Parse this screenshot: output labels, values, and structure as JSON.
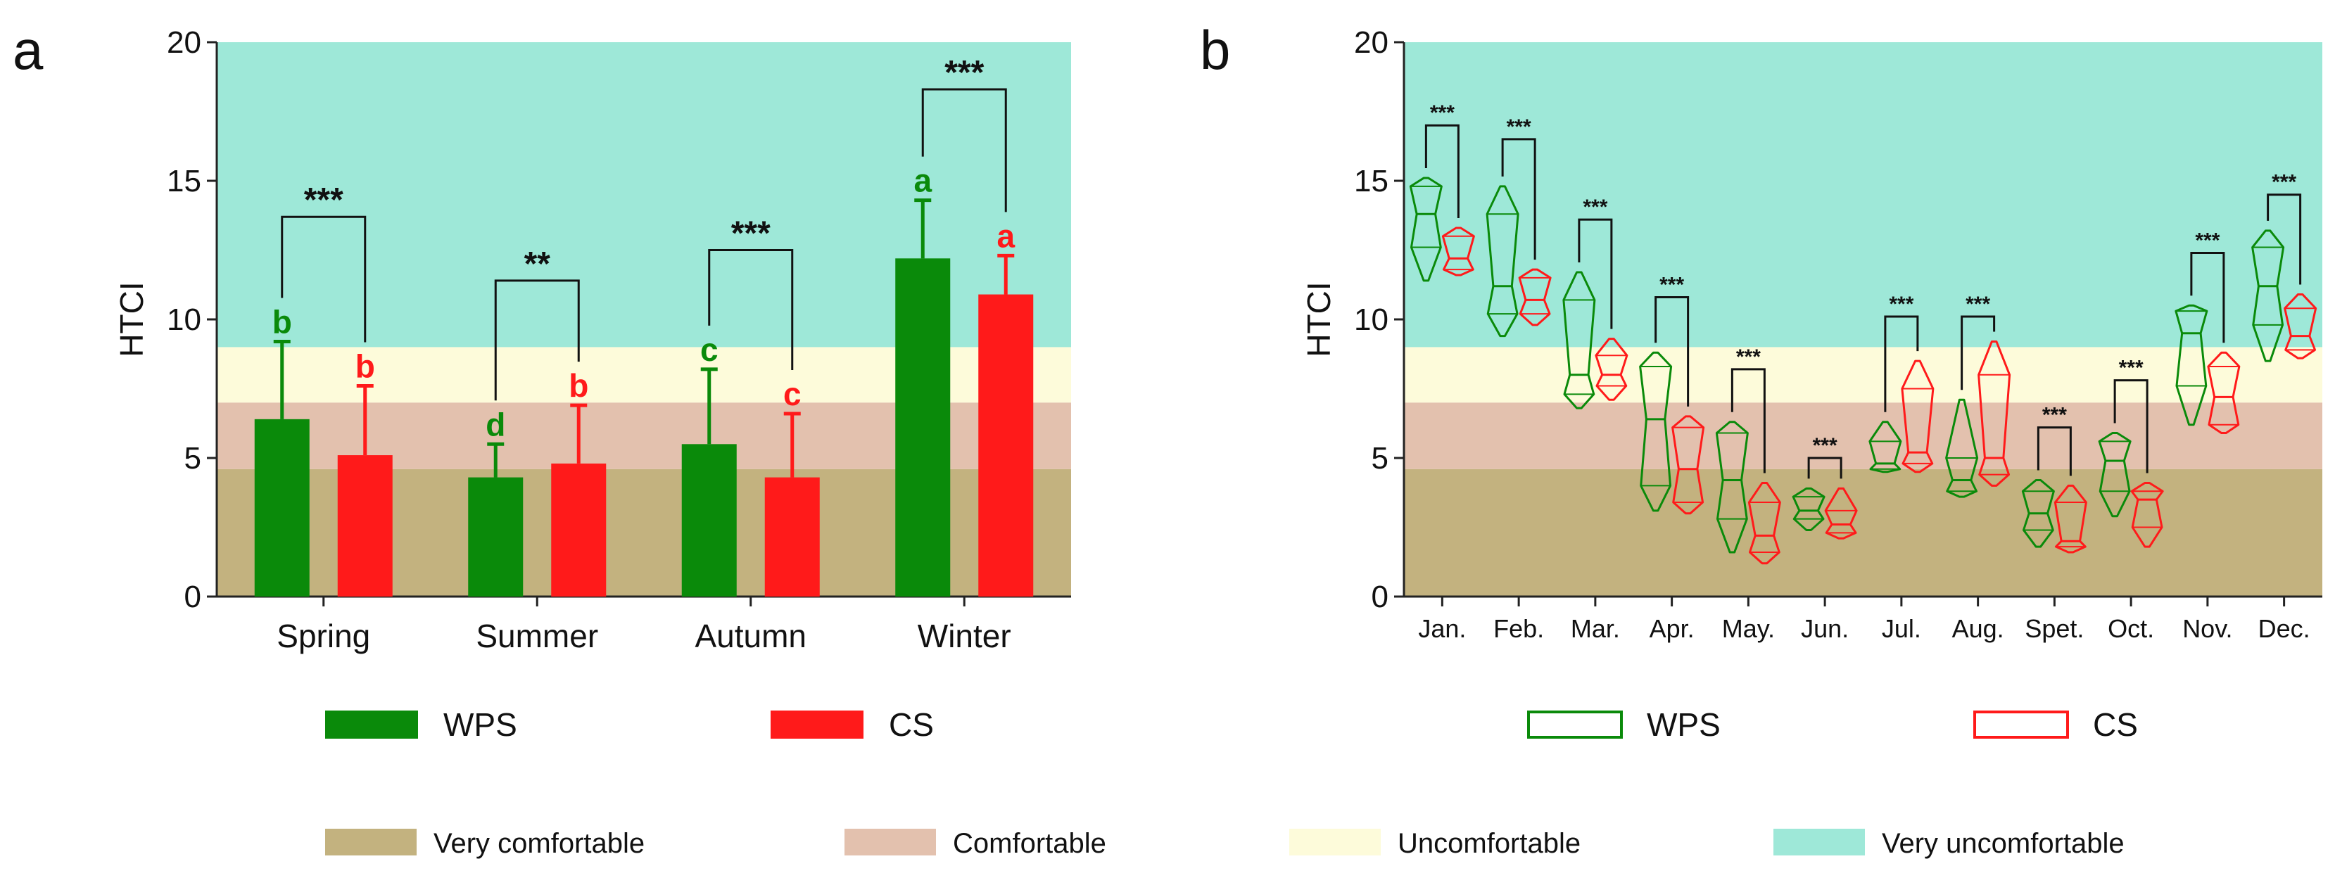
{
  "colors": {
    "wps": "#0a8a0a",
    "cs": "#ff1a1a",
    "very_comfortable": "#c3b27f",
    "comfortable": "#e3c1ae",
    "uncomfortable": "#fdfbda",
    "very_uncomfortable": "#9ee8d8"
  },
  "chart_data": [
    {
      "panel_label": "a",
      "type": "bar",
      "ylabel": "HTCI",
      "xlabel": "",
      "ylim": [
        0,
        20
      ],
      "yticks": [
        "0",
        "5",
        "10",
        "15",
        "20"
      ],
      "categories": [
        "Spring",
        "Summer",
        "Autumn",
        "Winter"
      ],
      "series": [
        {
          "name": "WPS",
          "values": [
            6.4,
            4.3,
            5.5,
            12.2
          ],
          "error": [
            2.8,
            1.2,
            2.7,
            2.1
          ],
          "letters": [
            "b",
            "d",
            "c",
            "a"
          ]
        },
        {
          "name": "CS",
          "values": [
            5.1,
            4.8,
            4.3,
            10.9
          ],
          "error": [
            2.5,
            2.1,
            2.3,
            1.4
          ],
          "letters": [
            "b",
            "b",
            "c",
            "a"
          ]
        }
      ],
      "significance": [
        {
          "label": "***",
          "y": 13.7
        },
        {
          "label": "**",
          "y": 11.4
        },
        {
          "label": "***",
          "y": 12.5
        },
        {
          "label": "***",
          "y": 18.3
        }
      ],
      "comfort_bands": [
        {
          "name": "Very comfortable",
          "from": 0,
          "to": 4.6
        },
        {
          "name": "Comfortable",
          "from": 4.6,
          "to": 7.0
        },
        {
          "name": "Uncomfortable",
          "from": 7.0,
          "to": 9.0
        },
        {
          "name": "Very uncomfortable",
          "from": 9.0,
          "to": 20
        }
      ],
      "legend": [
        "WPS",
        "CS"
      ]
    },
    {
      "panel_label": "b",
      "type": "violin",
      "ylabel": "HTCI",
      "xlabel": "",
      "ylim": [
        0,
        20
      ],
      "yticks": [
        "0",
        "5",
        "10",
        "15",
        "20"
      ],
      "categories": [
        "Jan.",
        "Feb.",
        "Mar.",
        "Apr.",
        "May.",
        "Jun.",
        "Jul.",
        "Aug.",
        "Spet.",
        "Oct.",
        "Nov.",
        "Dec."
      ],
      "series": [
        {
          "name": "WPS",
          "min": [
            11.4,
            9.4,
            6.8,
            3.1,
            1.6,
            2.4,
            4.5,
            3.6,
            1.8,
            2.9,
            6.2,
            8.5
          ],
          "max": [
            15.1,
            14.8,
            11.7,
            8.8,
            6.3,
            3.9,
            6.3,
            7.1,
            4.2,
            5.9,
            10.5,
            13.2
          ],
          "median": [
            13.8,
            11.2,
            8.0,
            6.4,
            4.2,
            3.1,
            4.8,
            4.2,
            3.0,
            4.9,
            9.5,
            11.2
          ],
          "q1": [
            12.6,
            10.2,
            7.3,
            4.0,
            2.8,
            2.8,
            4.6,
            3.8,
            2.4,
            3.8,
            7.6,
            9.8
          ],
          "q3": [
            14.8,
            13.8,
            10.7,
            8.3,
            5.9,
            3.6,
            5.6,
            5.0,
            3.8,
            5.6,
            10.3,
            12.6
          ]
        },
        {
          "name": "CS",
          "min": [
            11.6,
            9.8,
            7.1,
            3.0,
            1.2,
            2.1,
            4.5,
            4.0,
            1.6,
            1.8,
            5.9,
            8.6
          ],
          "max": [
            13.3,
            11.8,
            9.3,
            6.5,
            4.1,
            3.9,
            8.5,
            9.2,
            4.0,
            4.1,
            8.8,
            10.9
          ],
          "median": [
            12.2,
            10.7,
            8.0,
            4.6,
            2.2,
            2.6,
            5.2,
            5.0,
            2.0,
            3.5,
            7.2,
            9.4
          ],
          "q1": [
            11.8,
            10.2,
            7.6,
            3.4,
            1.6,
            2.3,
            4.8,
            4.4,
            1.8,
            2.5,
            6.2,
            8.9
          ],
          "q3": [
            13.0,
            11.5,
            8.7,
            6.1,
            3.4,
            3.1,
            7.5,
            8.0,
            3.4,
            3.8,
            8.3,
            10.4
          ]
        }
      ],
      "significance": [
        {
          "label": "***",
          "y": 17.0
        },
        {
          "label": "***",
          "y": 16.5
        },
        {
          "label": "***",
          "y": 13.6
        },
        {
          "label": "***",
          "y": 10.8
        },
        {
          "label": "***",
          "y": 8.2
        },
        {
          "label": "***",
          "y": 5.0
        },
        {
          "label": "***",
          "y": 10.1
        },
        {
          "label": "***",
          "y": 10.1
        },
        {
          "label": "***",
          "y": 6.1
        },
        {
          "label": "***",
          "y": 7.8
        },
        {
          "label": "***",
          "y": 12.4
        },
        {
          "label": "***",
          "y": 14.5
        }
      ],
      "comfort_bands": [
        {
          "name": "Very comfortable",
          "from": 0,
          "to": 4.6
        },
        {
          "name": "Comfortable",
          "from": 4.6,
          "to": 7.0
        },
        {
          "name": "Uncomfortable",
          "from": 7.0,
          "to": 9.0
        },
        {
          "name": "Very uncomfortable",
          "from": 9.0,
          "to": 20
        }
      ],
      "legend": [
        "WPS",
        "CS"
      ]
    }
  ],
  "comfort_legend": [
    "Very comfortable",
    "Comfortable",
    "Uncomfortable",
    "Very uncomfortable"
  ]
}
